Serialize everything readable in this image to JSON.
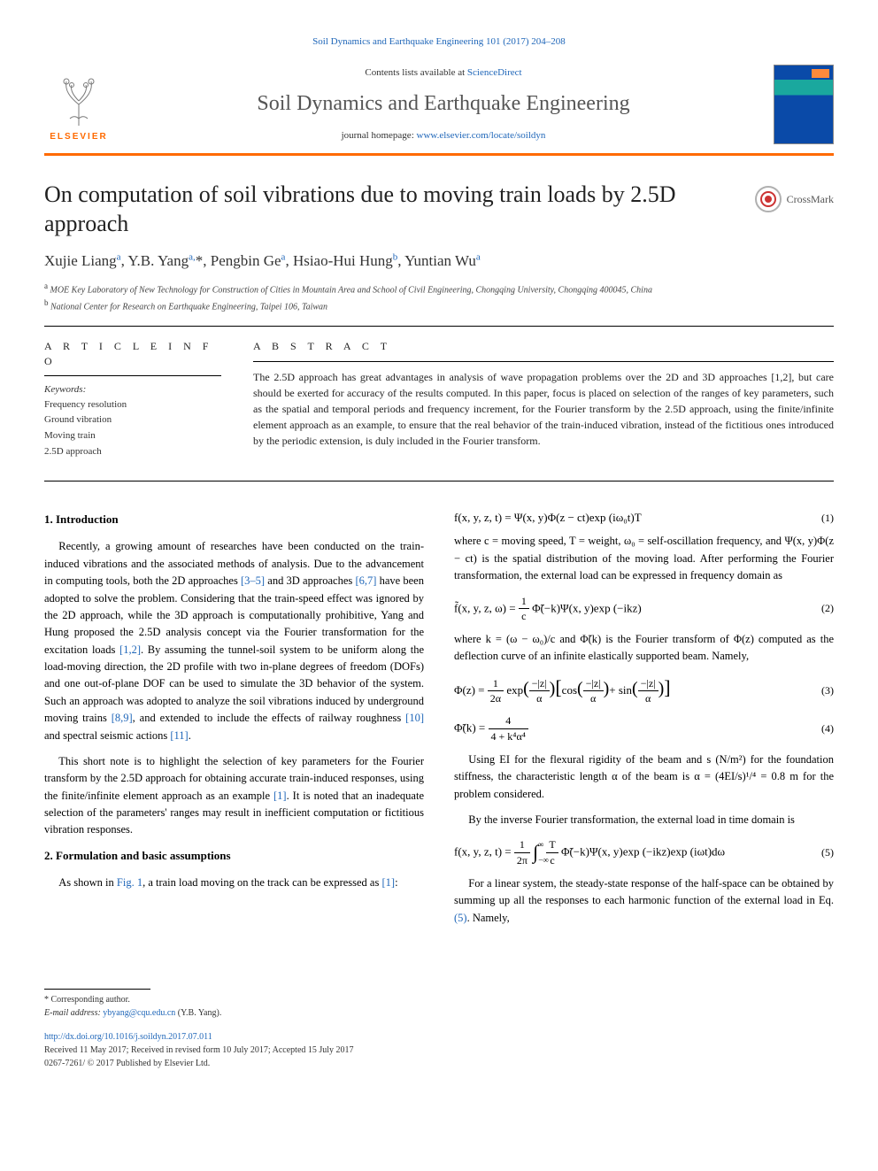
{
  "header": {
    "citation": "Soil Dynamics and Earthquake Engineering 101 (2017) 204–208",
    "contents_prefix": "Contents lists available at ",
    "contents_link": "ScienceDirect",
    "journal_name": "Soil Dynamics and Earthquake Engineering",
    "homepage_prefix": "journal homepage: ",
    "homepage_link": "www.elsevier.com/locate/soildyn",
    "elsevier_word": "ELSEVIER"
  },
  "title": "On computation of soil vibrations due to moving train loads by 2.5D approach",
  "crossmark_label": "CrossMark",
  "authors_html": "Xujie Liang<sup>a</sup>, Y.B. Yang<sup>a,</sup>*, Pengbin Ge<sup>a</sup>, Hsiao-Hui Hung<sup>b</sup>, Yuntian Wu<sup>a</sup>",
  "affiliations": [
    "a MOE Key Laboratory of New Technology for Construction of Cities in Mountain Area and School of Civil Engineering, Chongqing University, Chongqing 400045, China",
    "b National Center for Research on Earthquake Engineering, Taipei 106, Taiwan"
  ],
  "article_info": {
    "head": "A R T I C L E  I N F O",
    "keywords_label": "Keywords:",
    "keywords": [
      "Frequency resolution",
      "Ground vibration",
      "Moving train",
      "2.5D approach"
    ]
  },
  "abstract": {
    "head": "A B S T R A C T",
    "text": "The 2.5D approach has great advantages in analysis of wave propagation problems over the 2D and 3D approaches [1,2], but care should be exerted for accuracy of the results computed. In this paper, focus is placed on selection of the ranges of key parameters, such as the spatial and temporal periods and frequency increment, for the Fourier transform by the 2.5D approach, using the finite/infinite element approach as an example, to ensure that the real behavior of the train-induced vibration, instead of the fictitious ones introduced by the periodic extension, is duly included in the Fourier transform."
  },
  "left_col": {
    "h1": "1. Introduction",
    "p1": "Recently, a growing amount of researches have been conducted on the train-induced vibrations and the associated methods of analysis. Due to the advancement in computing tools, both the 2D approaches ",
    "p1_link1": "[3–5]",
    "p1_mid1": " and 3D approaches ",
    "p1_link2": "[6,7]",
    "p1_mid2": " have been adopted to solve the problem. Considering that the train-speed effect was ignored by the 2D approach, while the 3D approach is computationally prohibitive, Yang and Hung proposed the 2.5D analysis concept via the Fourier transformation for the excitation loads ",
    "p1_link3": "[1,2]",
    "p1_end": ". By assuming the tunnel-soil system to be uniform along the load-moving direction, the 2D profile with two in-plane degrees of freedom (DOFs) and one out-of-plane DOF can be used to simulate the 3D behavior of the system. Such an approach was adopted to analyze the soil vibrations induced by underground moving trains ",
    "p1_link4": "[8,9]",
    "p1_tail1": ", and extended to include the effects of railway roughness ",
    "p1_link5": "[10]",
    "p1_tail2": " and spectral seismic actions ",
    "p1_link6": "[11]",
    "p1_dot": ".",
    "p2a": "This short note is to highlight the selection of key parameters for the Fourier transform by the 2.5D approach for obtaining accurate train-induced responses, using the finite/infinite element approach as an example ",
    "p2_link": "[1]",
    "p2b": ". It is noted that an inadequate selection of the parameters' ranges may result in inefficient computation or fictitious vibration responses.",
    "h2": "2. Formulation and basic assumptions",
    "p3a": "As shown in ",
    "p3_link": "Fig. 1",
    "p3b": ", a train load moving on the track can be expressed as ",
    "p3_link2": "[1]",
    "p3c": ":"
  },
  "right_col": {
    "eq1": "f(x, y, z, t) = Ψ(x, y)Φ(z − ct)exp (iω₀t)T",
    "eq1n": "(1)",
    "p1": "where c = moving speed, T = weight, ω₀ = self-oscillation frequency, and Ψ(x, y)Φ(z − ct) is the spatial distribution of the moving load. After performing the Fourier transformation, the external load can be expressed in frequency domain as",
    "eq2_pre": "f̃(x, y, z, ω) = ",
    "eq2_frac_num": "1",
    "eq2_frac_den": "c",
    "eq2_post": " Φ̃(−k)Ψ(x, y)exp (−ikz)",
    "eq2n": "(2)",
    "p2": "where k = (ω − ω₀)/c and Φ̃(k) is the Fourier transform of Φ(z) computed as the deflection curve of an infinite elastically supported beam. Namely,",
    "eq3_pre": "Φ(z) = ",
    "eq3_f1n": "1",
    "eq3_f1d": "2α",
    "eq3_mid1": " exp",
    "eq3_f2n": "−|z|",
    "eq3_f2d": "α",
    "eq3_mid2": "cos",
    "eq3_f3n": "−|z|",
    "eq3_f3d": "α",
    "eq3_mid3": "+ sin",
    "eq3_f4n": "−|z|",
    "eq3_f4d": "α",
    "eq3n": "(3)",
    "eq4_pre": "Φ̃(k) = ",
    "eq4_num": "4",
    "eq4_den": "4 + k⁴α⁴",
    "eq4n": "(4)",
    "p3": "Using EI for the flexural rigidity of the beam and s (N/m²) for the foundation stiffness, the characteristic length α of the beam is α = (4EI/s)¹/⁴ = 0.8 m for the problem considered.",
    "p4": "By the inverse Fourier transformation, the external load in time domain is",
    "eq5_pre": "f(x, y, z, t) = ",
    "eq5_f1n": "1",
    "eq5_f1d": "2π",
    "eq5_int": "∫",
    "eq5_lim_lo": "−∞",
    "eq5_lim_hi": "∞",
    "eq5_f2n": "T",
    "eq5_f2d": "c",
    "eq5_post": " Φ̃(−k)Ψ(x, y)exp (−ikz)exp (iωt)dω",
    "eq5n": "(5)",
    "p5a": "For a linear system, the steady-state response of the half-space can be obtained by summing up all the responses to each harmonic function of the external load in Eq. ",
    "p5_link": "(5)",
    "p5b": ". Namely,"
  },
  "footer": {
    "corr": "* Corresponding author.",
    "email_label": "E-mail address: ",
    "email": "ybyang@cqu.edu.cn",
    "email_suffix": " (Y.B. Yang).",
    "doi": "http://dx.doi.org/10.1016/j.soildyn.2017.07.011",
    "history": "Received 11 May 2017; Received in revised form 10 July 2017; Accepted 15 July 2017",
    "copyright": "0267-7261/ © 2017 Published by Elsevier Ltd."
  },
  "colors": {
    "link": "#2067b9",
    "orange": "#ff6a00",
    "text": "#222222"
  }
}
